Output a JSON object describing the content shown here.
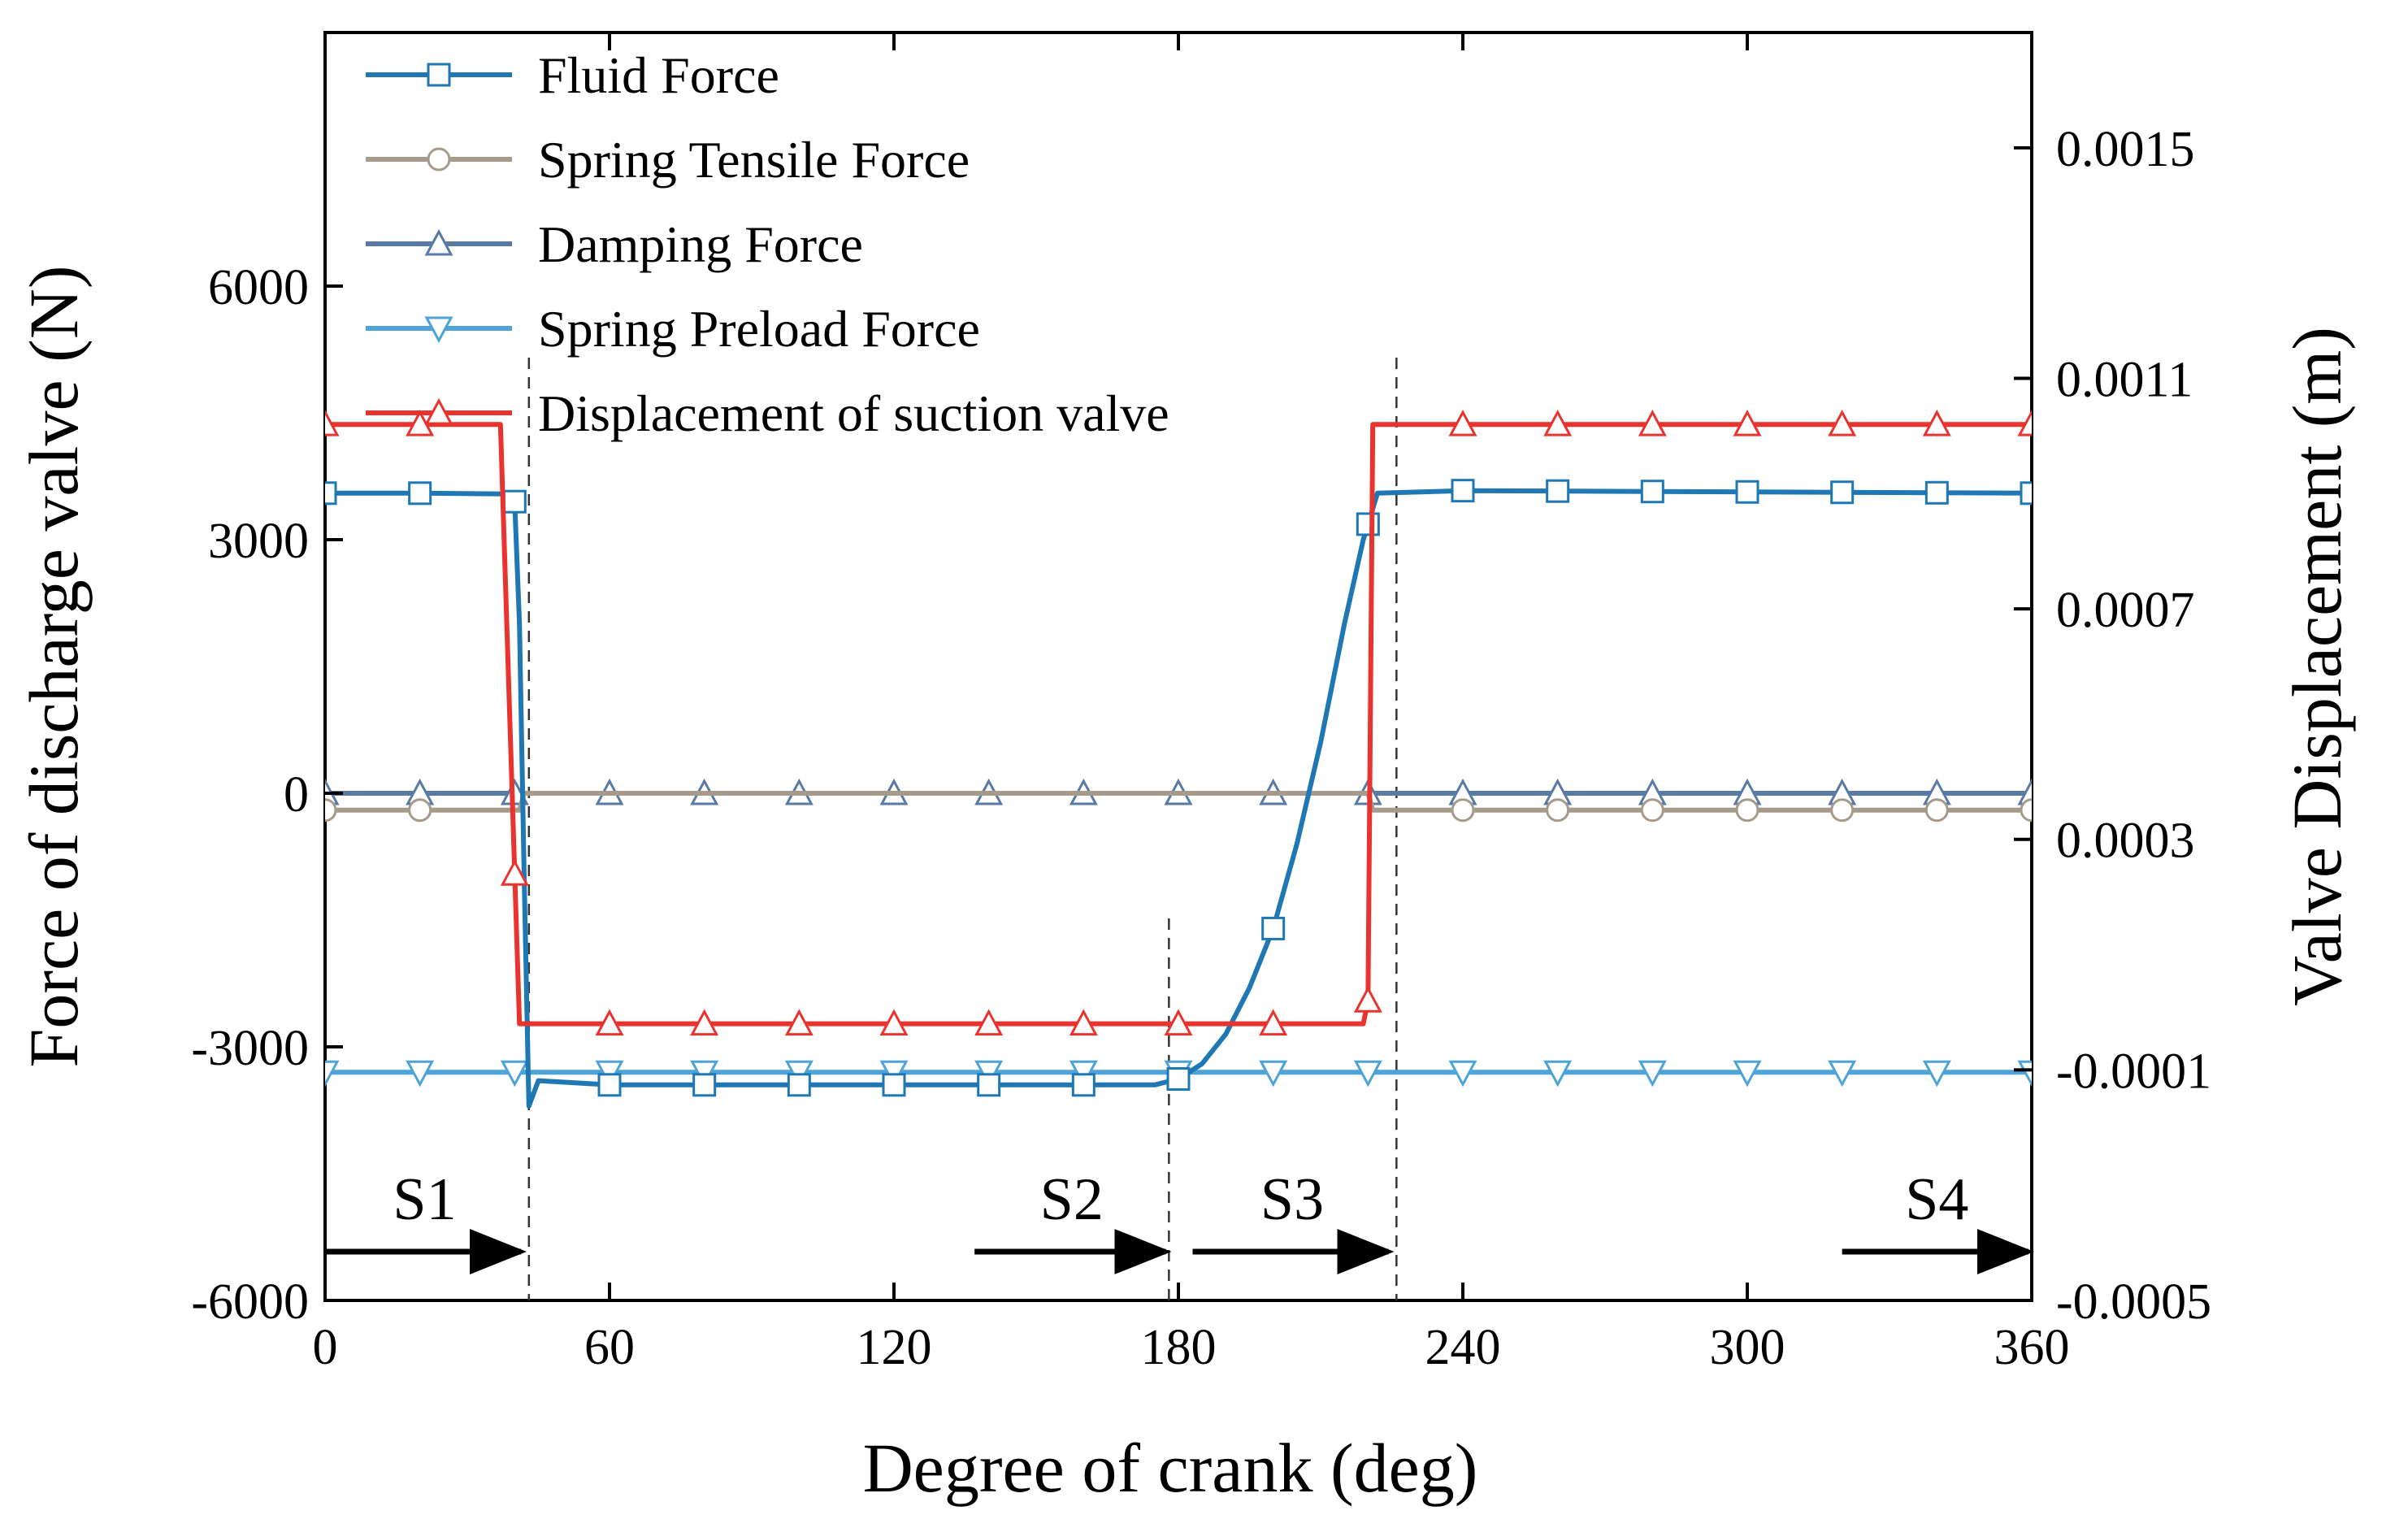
{
  "chart_data": {
    "type": "line",
    "xlabel": "Degree of crank (deg)",
    "ylabel_left": "Force of discharge valve (N)",
    "ylabel_right": "Valve Displacement (m)",
    "xlim": [
      0,
      360
    ],
    "ylim_left": [
      -6000,
      9000
    ],
    "ylim_right": [
      -0.0005,
      0.0017
    ],
    "x_ticks": [
      0,
      60,
      120,
      180,
      240,
      300,
      360
    ],
    "y_ticks_left": [
      -6000,
      -3000,
      0,
      3000,
      6000
    ],
    "y_ticks_left_labels": [
      "-6000",
      "-3000",
      "0",
      "3000",
      "6000"
    ],
    "y_ticks_right": [
      -0.0005,
      -0.0001,
      0.0003,
      0.0007,
      0.0011,
      0.0015
    ],
    "y_ticks_right_labels": [
      "-0.0005",
      "-0.0001",
      "0.0003",
      "0.0007",
      "0.0011",
      "0.0015"
    ],
    "grid": false,
    "legend_position": "top-left",
    "series": [
      {
        "name": "Fluid  Force",
        "axis": "left",
        "color": "#1f77b4",
        "marker": "square",
        "points": [
          [
            0,
            3550
          ],
          [
            20,
            3550
          ],
          [
            38,
            3540
          ],
          [
            40,
            3450
          ],
          [
            41,
            2000
          ],
          [
            42,
            -1000
          ],
          [
            43,
            -3700
          ],
          [
            45,
            -3400
          ],
          [
            60,
            -3450
          ],
          [
            100,
            -3450
          ],
          [
            140,
            -3450
          ],
          [
            175,
            -3450
          ],
          [
            180,
            -3380
          ],
          [
            185,
            -3200
          ],
          [
            190,
            -2850
          ],
          [
            195,
            -2300
          ],
          [
            200,
            -1600
          ],
          [
            205,
            -600
          ],
          [
            210,
            600
          ],
          [
            215,
            2000
          ],
          [
            219,
            3000
          ],
          [
            222,
            3550
          ],
          [
            240,
            3580
          ],
          [
            280,
            3570
          ],
          [
            320,
            3560
          ],
          [
            360,
            3550
          ]
        ],
        "marker_x": [
          0,
          20,
          40,
          60,
          80,
          100,
          120,
          140,
          160,
          180,
          200,
          220,
          240,
          260,
          280,
          300,
          320,
          340,
          360
        ]
      },
      {
        "name": "Spring Tensile Force",
        "axis": "left",
        "color": "#a69b8a",
        "marker": "circle",
        "points": [
          [
            0,
            -200
          ],
          [
            41,
            -200
          ],
          [
            42,
            0
          ],
          [
            220,
            0
          ],
          [
            221,
            -200
          ],
          [
            360,
            -200
          ]
        ],
        "marker_x": [
          0,
          20,
          240,
          260,
          280,
          300,
          320,
          340,
          360
        ]
      },
      {
        "name": "Damping  Force",
        "axis": "left",
        "color": "#5a7aa6",
        "marker": "triangle-up",
        "points": [
          [
            0,
            0
          ],
          [
            360,
            0
          ]
        ],
        "marker_x": [
          0,
          20,
          40,
          60,
          80,
          100,
          120,
          140,
          160,
          180,
          200,
          220,
          240,
          260,
          280,
          300,
          320,
          340,
          360
        ]
      },
      {
        "name": "Spring Preload  Force",
        "axis": "left",
        "color": "#4ea3d8",
        "marker": "triangle-down",
        "points": [
          [
            0,
            -3300
          ],
          [
            360,
            -3300
          ]
        ],
        "marker_x": [
          0,
          20,
          40,
          60,
          80,
          100,
          120,
          140,
          160,
          180,
          200,
          220,
          240,
          260,
          280,
          300,
          320,
          340,
          360
        ]
      },
      {
        "name": "Displacement of suction valve",
        "axis": "right",
        "color": "#e8332e",
        "marker": "triangle-up",
        "points": [
          [
            0,
            0.00102
          ],
          [
            37,
            0.00102
          ],
          [
            41,
            -2e-05
          ],
          [
            219,
            -2e-05
          ],
          [
            220,
            2e-05
          ],
          [
            221,
            0.00102
          ],
          [
            360,
            0.00102
          ]
        ],
        "marker_x": [
          0,
          20,
          40,
          60,
          80,
          100,
          120,
          140,
          160,
          180,
          200,
          220,
          240,
          260,
          280,
          300,
          320,
          340,
          360
        ]
      }
    ],
    "annotations": [
      {
        "label": "S1",
        "arrow_from_x": 0,
        "arrow_to_x": 42
      },
      {
        "label": "S2",
        "arrow_from_x": 137,
        "arrow_to_x": 178
      },
      {
        "label": "S3",
        "arrow_from_x": 183,
        "arrow_to_x": 225
      },
      {
        "label": "S4",
        "arrow_from_x": 320,
        "arrow_to_x": 360
      }
    ],
    "vlines_x": [
      43,
      178,
      226
    ]
  }
}
